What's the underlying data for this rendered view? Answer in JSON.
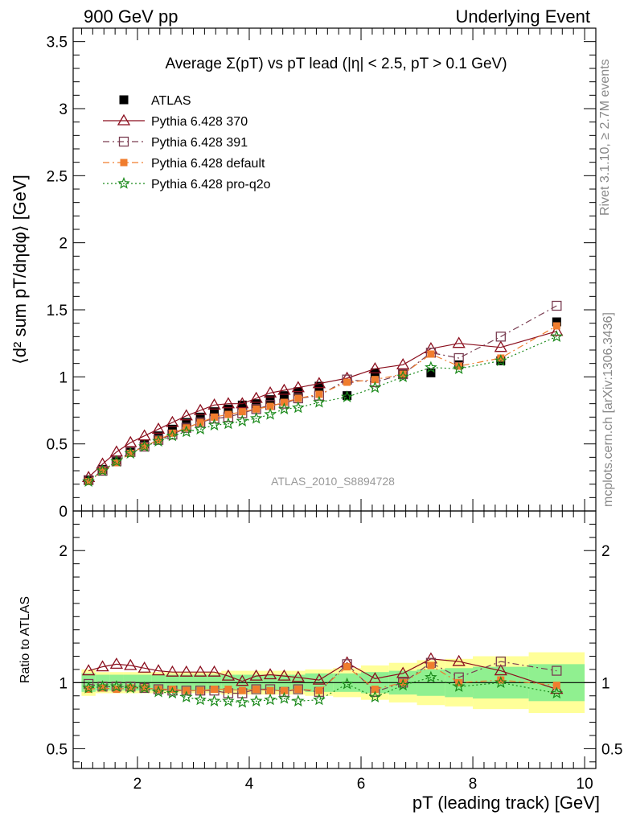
{
  "header": {
    "left": "900 GeV pp",
    "right": "Underlying Event"
  },
  "side_text": {
    "rivet": "Rivet 3.1.10, ≥ 2.7M events",
    "mcplots": "mcplots.cern.ch [arXiv:1306.3436]"
  },
  "chart_data": [
    {
      "type": "scatter",
      "title": "Average Σ(pT) vs pT lead (|η| < 2.5, pT > 0.1 GeV)",
      "watermark": "ATLAS_2010_S8894728",
      "ylabel": "⟨d² sum pT/dηdφ⟩ [GeV]",
      "xlim": [
        0.85,
        10.2
      ],
      "ylim": [
        0,
        3.6
      ],
      "yticks": [
        0,
        0.5,
        1,
        1.5,
        2,
        2.5,
        3,
        3.5
      ],
      "ytick_labels": [
        "0",
        "0.5",
        "1",
        "1.5",
        "2",
        "2.5",
        "3",
        "3.5"
      ],
      "x": [
        1.125,
        1.375,
        1.625,
        1.875,
        2.125,
        2.375,
        2.625,
        2.875,
        3.125,
        3.375,
        3.625,
        3.875,
        4.125,
        4.375,
        4.625,
        4.875,
        5.25,
        5.75,
        6.25,
        6.75,
        7.25,
        7.75,
        8.5,
        9.5
      ],
      "series": [
        {
          "name": "ATLAS",
          "color": "#000000",
          "marker": "filled-square",
          "line": "none",
          "values": [
            0.23,
            0.31,
            0.38,
            0.45,
            0.5,
            0.56,
            0.61,
            0.66,
            0.7,
            0.74,
            0.76,
            0.79,
            0.8,
            0.83,
            0.86,
            0.89,
            0.93,
            0.86,
            1.03,
            1.02,
            1.03,
            1.09,
            1.12,
            1.41
          ]
        },
        {
          "name": "Pythia 6.428 370",
          "color": "#8b0f1e",
          "marker": "open-triangle",
          "line": "solid",
          "values": [
            0.25,
            0.35,
            0.44,
            0.51,
            0.56,
            0.61,
            0.66,
            0.71,
            0.75,
            0.79,
            0.8,
            0.8,
            0.84,
            0.88,
            0.9,
            0.92,
            0.95,
            0.99,
            1.06,
            1.09,
            1.21,
            1.25,
            1.22,
            1.34
          ]
        },
        {
          "name": "Pythia 6.428 391",
          "color": "#7a3e52",
          "marker": "open-square",
          "line": "dashdot",
          "values": [
            0.23,
            0.3,
            0.37,
            0.44,
            0.48,
            0.53,
            0.57,
            0.62,
            0.66,
            0.69,
            0.7,
            0.73,
            0.76,
            0.79,
            0.8,
            0.84,
            0.86,
            0.98,
            0.96,
            1.02,
            1.18,
            1.14,
            1.3,
            1.53
          ]
        },
        {
          "name": "Pythia 6.428 default",
          "color": "#f07d2e",
          "marker": "filled-square-small",
          "line": "dashdot",
          "values": [
            0.22,
            0.3,
            0.36,
            0.43,
            0.48,
            0.53,
            0.58,
            0.62,
            0.66,
            0.7,
            0.72,
            0.74,
            0.76,
            0.78,
            0.81,
            0.84,
            0.87,
            0.96,
            0.98,
            1.02,
            1.17,
            1.08,
            1.14,
            1.38
          ]
        },
        {
          "name": "Pythia 6.428 pro-q2o",
          "color": "#1b8a1b",
          "marker": "open-star",
          "line": "dotted",
          "values": [
            0.22,
            0.3,
            0.37,
            0.43,
            0.48,
            0.52,
            0.56,
            0.59,
            0.61,
            0.64,
            0.65,
            0.67,
            0.69,
            0.72,
            0.76,
            0.77,
            0.81,
            0.85,
            0.92,
            1.0,
            1.07,
            1.06,
            1.12,
            1.3
          ]
        }
      ],
      "legend_placement": "top-left"
    },
    {
      "type": "scatter",
      "ylabel": "Ratio to ATLAS",
      "xlabel": "pT (leading track) [GeV]",
      "xlim": [
        0.85,
        10.2
      ],
      "ylim": [
        0.35,
        2.3
      ],
      "xticks": [
        2,
        4,
        6,
        8,
        10
      ],
      "xtick_labels": [
        "2",
        "4",
        "6",
        "8",
        "10"
      ],
      "yticks": [
        0.5,
        1,
        2
      ],
      "ytick_labels": [
        "0.5",
        "1",
        "2"
      ],
      "x": [
        1.125,
        1.375,
        1.625,
        1.875,
        2.125,
        2.375,
        2.625,
        2.875,
        3.125,
        3.375,
        3.625,
        3.875,
        4.125,
        4.375,
        4.625,
        4.875,
        5.25,
        5.75,
        6.25,
        6.75,
        7.25,
        7.75,
        8.5,
        9.5
      ],
      "bins": [
        [
          1.0,
          1.25
        ],
        [
          1.25,
          1.5
        ],
        [
          1.5,
          1.75
        ],
        [
          1.75,
          2.0
        ],
        [
          2.0,
          2.25
        ],
        [
          2.25,
          2.5
        ],
        [
          2.5,
          2.75
        ],
        [
          2.75,
          3.0
        ],
        [
          3.0,
          3.25
        ],
        [
          3.25,
          3.5
        ],
        [
          3.5,
          3.75
        ],
        [
          3.75,
          4.0
        ],
        [
          4.0,
          4.25
        ],
        [
          4.25,
          4.5
        ],
        [
          4.5,
          4.75
        ],
        [
          4.75,
          5.0
        ],
        [
          5.0,
          5.5
        ],
        [
          5.5,
          6.0
        ],
        [
          6.0,
          6.5
        ],
        [
          6.5,
          7.0
        ],
        [
          7.0,
          7.5
        ],
        [
          7.5,
          8.0
        ],
        [
          8.0,
          9.0
        ],
        [
          9.0,
          10.0
        ]
      ],
      "band_inner": [
        0.07,
        0.06,
        0.06,
        0.06,
        0.06,
        0.06,
        0.06,
        0.06,
        0.06,
        0.06,
        0.06,
        0.06,
        0.06,
        0.06,
        0.06,
        0.06,
        0.07,
        0.07,
        0.08,
        0.09,
        0.1,
        0.11,
        0.12,
        0.14
      ],
      "band_outer": [
        0.1,
        0.08,
        0.08,
        0.08,
        0.08,
        0.08,
        0.08,
        0.08,
        0.08,
        0.08,
        0.09,
        0.09,
        0.09,
        0.09,
        0.09,
        0.09,
        0.1,
        0.11,
        0.13,
        0.15,
        0.17,
        0.18,
        0.2,
        0.23
      ],
      "band_colors": {
        "inner": "#90f090",
        "outer": "#ffff99"
      },
      "series": [
        {
          "name": "Pythia 6.428 370",
          "values": [
            1.09,
            1.12,
            1.14,
            1.13,
            1.11,
            1.09,
            1.08,
            1.08,
            1.08,
            1.08,
            1.05,
            1.01,
            1.05,
            1.06,
            1.05,
            1.04,
            1.02,
            1.15,
            1.03,
            1.07,
            1.18,
            1.16,
            1.09,
            0.95
          ]
        },
        {
          "name": "Pythia 6.428 391",
          "values": [
            0.99,
            0.97,
            0.97,
            0.97,
            0.96,
            0.95,
            0.94,
            0.94,
            0.94,
            0.94,
            0.92,
            0.92,
            0.95,
            0.95,
            0.93,
            0.95,
            0.93,
            1.14,
            0.93,
            1.0,
            1.15,
            1.04,
            1.16,
            1.09
          ]
        },
        {
          "name": "Pythia 6.428 default",
          "values": [
            0.95,
            0.96,
            0.95,
            0.96,
            0.96,
            0.95,
            0.95,
            0.94,
            0.94,
            0.95,
            0.95,
            0.94,
            0.95,
            0.94,
            0.94,
            0.95,
            0.94,
            1.12,
            0.95,
            1.0,
            1.13,
            1.0,
            1.02,
            0.98
          ]
        },
        {
          "name": "Pythia 6.428 pro-q2o",
          "values": [
            0.96,
            0.97,
            0.97,
            0.96,
            0.96,
            0.93,
            0.92,
            0.89,
            0.87,
            0.86,
            0.86,
            0.85,
            0.86,
            0.87,
            0.88,
            0.86,
            0.87,
            0.99,
            0.89,
            0.98,
            1.04,
            0.97,
            1.0,
            0.92
          ]
        }
      ]
    }
  ]
}
